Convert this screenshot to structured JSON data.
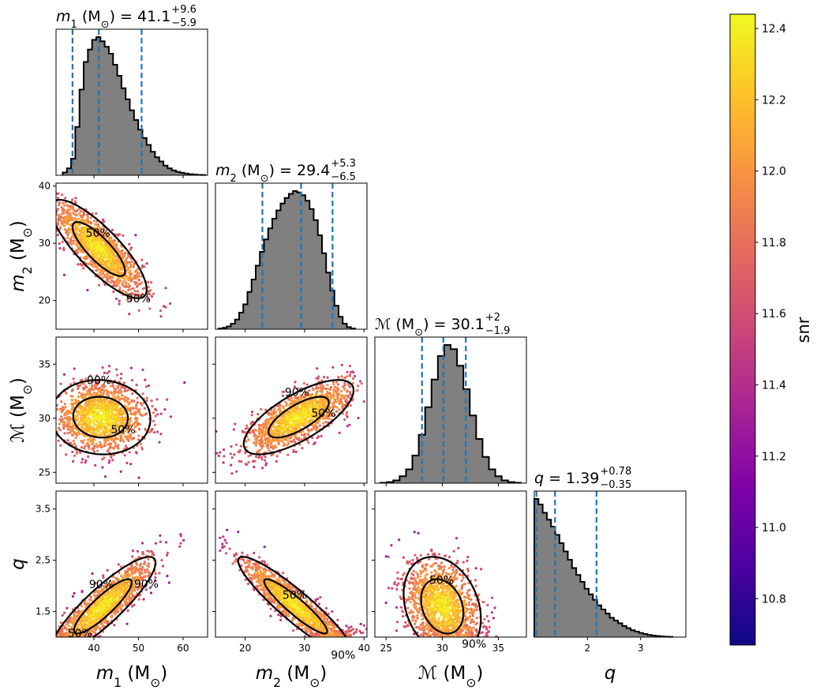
{
  "chart_data": {
    "type": "corner",
    "parameters": [
      {
        "key": "m1",
        "label_sym": "m",
        "label_sub": "1",
        "unit": "(M",
        "unit_sub": "⊙",
        "unit_end": ")",
        "range": [
          31.5,
          65.5
        ],
        "ticks": [
          40,
          50,
          60
        ],
        "tick_labels": [
          "40",
          "50",
          "60"
        ],
        "title_prefix": " = 41.1",
        "title_plus": "+9.6",
        "title_minus": "−5.9",
        "median": 41.1,
        "lower": 35.2,
        "upper": 50.7
      },
      {
        "key": "m2",
        "label_sym": "m",
        "label_sub": "2",
        "unit": "(M",
        "unit_sub": "⊙",
        "unit_end": ")",
        "range": [
          15,
          40.5
        ],
        "ticks": [
          20,
          30,
          40
        ],
        "tick_labels": [
          "20",
          "30",
          "40"
        ],
        "title_prefix": " = 29.4",
        "title_plus": "+5.3",
        "title_minus": "−6.5",
        "median": 29.4,
        "lower": 22.9,
        "upper": 34.7
      },
      {
        "key": "mc",
        "label_sym": "ℳ",
        "label_sub": "",
        "unit": "(M",
        "unit_sub": "⊙",
        "unit_end": ")",
        "range": [
          24,
          37.5
        ],
        "ticks": [
          25,
          30,
          35
        ],
        "tick_labels": [
          "25",
          "30",
          "35"
        ],
        "title_prefix": " = 30.1",
        "title_plus": "+2",
        "title_minus": "−1.9",
        "median": 30.1,
        "lower": 28.2,
        "upper": 32.1
      },
      {
        "key": "q",
        "label_sym": "q",
        "label_sub": "",
        "unit": "",
        "unit_sub": "",
        "unit_end": "",
        "range": [
          1.0,
          3.85
        ],
        "ticks": [
          2,
          3
        ],
        "tick_labels": [
          "2",
          "3"
        ],
        "y_range": [
          1.0,
          3.85
        ],
        "y_ticks": [
          1.5,
          2.5,
          3.5
        ],
        "y_tick_labels": [
          "1.5",
          "2.5",
          "3.5"
        ],
        "title_prefix": " = 1.39",
        "title_plus": "+0.78",
        "title_minus": "−0.35",
        "median": 1.39,
        "lower": 1.04,
        "upper": 2.17
      }
    ],
    "y_axis_overrides": {
      "m2": {
        "range": [
          15,
          40.5
        ],
        "ticks": [
          20,
          30,
          40
        ],
        "tick_labels": [
          "20",
          "30",
          "40"
        ]
      },
      "mc": {
        "range": [
          24,
          37.5
        ],
        "ticks": [
          25,
          30,
          35
        ],
        "tick_labels": [
          "25",
          "30",
          "35"
        ]
      }
    },
    "histograms": {
      "m1": [
        0.02,
        0.05,
        0.12,
        0.35,
        0.62,
        0.82,
        0.91,
        0.98,
        1.0,
        0.97,
        0.93,
        0.88,
        0.8,
        0.72,
        0.63,
        0.55,
        0.47,
        0.4,
        0.33,
        0.27,
        0.22,
        0.17,
        0.13,
        0.1,
        0.07,
        0.05,
        0.035,
        0.025,
        0.018,
        0.012,
        0.008,
        0.005,
        0.003,
        0.002
      ],
      "m2": [
        0.005,
        0.01,
        0.02,
        0.04,
        0.07,
        0.12,
        0.18,
        0.27,
        0.36,
        0.46,
        0.56,
        0.65,
        0.73,
        0.8,
        0.86,
        0.91,
        0.95,
        0.98,
        1.0,
        0.99,
        0.97,
        0.93,
        0.87,
        0.79,
        0.68,
        0.55,
        0.41,
        0.28,
        0.17,
        0.09,
        0.04,
        0.015,
        0.005
      ],
      "mc": [
        0.003,
        0.008,
        0.02,
        0.05,
        0.1,
        0.2,
        0.35,
        0.55,
        0.75,
        0.92,
        1.0,
        0.97,
        0.85,
        0.68,
        0.49,
        0.32,
        0.19,
        0.1,
        0.05,
        0.02,
        0.008,
        0.003
      ],
      "q": [
        1.0,
        0.96,
        0.9,
        0.85,
        0.8,
        0.74,
        0.68,
        0.62,
        0.56,
        0.5,
        0.45,
        0.4,
        0.35,
        0.31,
        0.27,
        0.23,
        0.2,
        0.17,
        0.14,
        0.12,
        0.1,
        0.08,
        0.065,
        0.05,
        0.04,
        0.03,
        0.022,
        0.016,
        0.011,
        0.008,
        0.005,
        0.003,
        0.002
      ]
    },
    "joint": [
      {
        "row": 1,
        "col": 0,
        "mean": [
          41.1,
          29.0
        ],
        "sd": [
          5.0,
          4.0
        ],
        "rho": -0.82,
        "contour_labels": [
          "90%",
          "50%"
        ]
      },
      {
        "row": 2,
        "col": 0,
        "mean": [
          41.5,
          30.1
        ],
        "sd": [
          5.2,
          1.6
        ],
        "rho": -0.05,
        "contour_labels": [
          "50%",
          "90%"
        ]
      },
      {
        "row": 2,
        "col": 1,
        "mean": [
          29.0,
          30.1
        ],
        "sd": [
          4.3,
          1.6
        ],
        "rho": 0.72,
        "contour_labels": [
          "50%",
          "90%"
        ]
      },
      {
        "row": 3,
        "col": 0,
        "mean": [
          42.0,
          1.6
        ],
        "sd": [
          5.5,
          0.45
        ],
        "rho": 0.88,
        "contour_labels": [
          "90%",
          "90%",
          "50%"
        ]
      },
      {
        "row": 3,
        "col": 1,
        "mean": [
          28.5,
          1.6
        ],
        "sd": [
          4.5,
          0.45
        ],
        "rho": -0.92,
        "contour_labels": [
          "90%",
          "50%"
        ]
      },
      {
        "row": 3,
        "col": 2,
        "mean": [
          30.0,
          1.6
        ],
        "sd": [
          1.6,
          0.45
        ],
        "rho": -0.25,
        "contour_labels": [
          "90%",
          "50%"
        ]
      }
    ],
    "colorbar": {
      "label": "snr",
      "range": [
        10.67,
        12.44
      ],
      "ticks": [
        10.8,
        11.0,
        11.2,
        11.4,
        11.6,
        11.8,
        12.0,
        12.2,
        12.4
      ],
      "tick_labels": [
        "10.8",
        "11.0",
        "11.2",
        "11.4",
        "11.6",
        "11.8",
        "12.0",
        "12.2",
        "12.4"
      ],
      "colormap": "plasma"
    },
    "colors": {
      "hist_fill": "#808080",
      "hist_edge": "#000000",
      "quantile_line": "#1f77b4",
      "contour": "#000000"
    }
  }
}
